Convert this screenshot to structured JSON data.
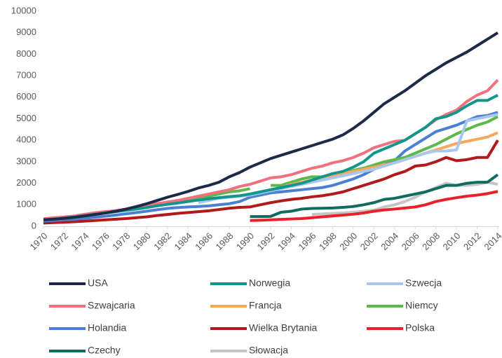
{
  "chart_data": {
    "type": "line",
    "x": [
      1970,
      1971,
      1972,
      1973,
      1974,
      1975,
      1976,
      1977,
      1978,
      1979,
      1980,
      1981,
      1982,
      1983,
      1984,
      1985,
      1986,
      1987,
      1988,
      1989,
      1990,
      1991,
      1992,
      1993,
      1994,
      1995,
      1996,
      1997,
      1998,
      1999,
      2000,
      2001,
      2002,
      2003,
      2004,
      2005,
      2006,
      2007,
      2008,
      2009,
      2010,
      2011,
      2012,
      2013,
      2014
    ],
    "xlim": [
      1970,
      2014
    ],
    "xticks": [
      1970,
      1972,
      1974,
      1976,
      1978,
      1980,
      1982,
      1984,
      1986,
      1988,
      1990,
      1992,
      1994,
      1996,
      1998,
      2000,
      2002,
      2004,
      2006,
      2008,
      2010,
      2012,
      2014
    ],
    "ylim": [
      0,
      10000
    ],
    "yticks": [
      0,
      1000,
      2000,
      3000,
      4000,
      5000,
      6000,
      7000,
      8000,
      9000,
      10000
    ],
    "series": [
      {
        "name": "USA",
        "color": "#1c2a48",
        "values": [
          300,
          330,
          370,
          420,
          480,
          550,
          620,
          700,
          800,
          920,
          1050,
          1200,
          1350,
          1480,
          1620,
          1780,
          1900,
          2050,
          2300,
          2500,
          2750,
          2950,
          3150,
          3300,
          3450,
          3600,
          3750,
          3900,
          4050,
          4250,
          4550,
          4900,
          5300,
          5700,
          6000,
          6300,
          6650,
          7000,
          7300,
          7600,
          7850,
          8100,
          8400,
          8700,
          9000
        ]
      },
      {
        "name": "Norwegia",
        "color": "#12968c",
        "values": [
          300,
          330,
          380,
          430,
          500,
          560,
          620,
          680,
          740,
          800,
          870,
          950,
          1020,
          1080,
          1150,
          1220,
          1280,
          1330,
          1380,
          1420,
          1500,
          1600,
          1700,
          1800,
          1900,
          2000,
          2150,
          2300,
          2450,
          2550,
          2750,
          3000,
          3400,
          3600,
          3800,
          4000,
          4300,
          4600,
          5000,
          5100,
          5300,
          5600,
          5850,
          5850,
          6100
        ]
      },
      {
        "name": "Szwecja",
        "color": "#a9c6ec",
        "values": [
          null,
          null,
          null,
          null,
          null,
          null,
          null,
          null,
          null,
          null,
          null,
          null,
          null,
          null,
          null,
          1100,
          1200,
          1300,
          1350,
          1400,
          1450,
          1550,
          1650,
          1750,
          1850,
          1950,
          2050,
          2150,
          2250,
          2350,
          2450,
          2550,
          2650,
          2800,
          2950,
          3100,
          3250,
          3400,
          3500,
          3500,
          3550,
          4900,
          5000,
          5100,
          5200
        ]
      },
      {
        "name": "Szwajcaria",
        "color": "#f0707e",
        "values": [
          350,
          400,
          430,
          480,
          560,
          630,
          680,
          730,
          800,
          870,
          950,
          1050,
          1130,
          1200,
          1300,
          1400,
          1500,
          1600,
          1700,
          1850,
          1950,
          2100,
          2250,
          2300,
          2400,
          2550,
          2700,
          2800,
          2950,
          3050,
          3200,
          3400,
          3650,
          3800,
          3950,
          4000,
          4300,
          4600,
          4950,
          5200,
          5400,
          5800,
          6100,
          6300,
          6800
        ]
      },
      {
        "name": "Francja",
        "color": "#f6a75c",
        "values": [
          null,
          null,
          null,
          null,
          null,
          null,
          null,
          null,
          null,
          null,
          null,
          null,
          null,
          null,
          null,
          null,
          null,
          null,
          null,
          null,
          1500,
          1600,
          1700,
          1800,
          1950,
          2050,
          2150,
          2250,
          2350,
          2450,
          2550,
          2650,
          2750,
          2850,
          2950,
          3100,
          3250,
          3400,
          3550,
          3700,
          3850,
          3950,
          4050,
          4150,
          4350
        ]
      },
      {
        "name": "Niemcy",
        "color": "#5cb84a",
        "values": [
          300,
          330,
          380,
          440,
          520,
          600,
          650,
          700,
          780,
          850,
          930,
          1000,
          1080,
          1150,
          1250,
          1350,
          1400,
          1500,
          1600,
          1650,
          1750,
          null,
          1900,
          1900,
          2050,
          2200,
          2300,
          2300,
          2400,
          2500,
          2600,
          2700,
          2850,
          3000,
          3100,
          3200,
          3400,
          3600,
          3800,
          4050,
          4300,
          4500,
          4700,
          4850,
          5100
        ]
      },
      {
        "name": "Holandia",
        "color": "#4a7fd4",
        "values": [
          250,
          270,
          300,
          330,
          370,
          420,
          470,
          520,
          580,
          640,
          700,
          770,
          830,
          870,
          900,
          920,
          950,
          1000,
          1050,
          1150,
          1350,
          1450,
          1550,
          1600,
          1650,
          1700,
          1750,
          1800,
          1900,
          2050,
          2200,
          2400,
          2650,
          2850,
          3050,
          3500,
          3800,
          4100,
          4400,
          4550,
          4700,
          4900,
          5100,
          5150,
          5300
        ]
      },
      {
        "name": "Wielka Brytania",
        "color": "#b01a1a",
        "values": [
          150,
          170,
          190,
          210,
          240,
          270,
          300,
          330,
          360,
          400,
          440,
          500,
          550,
          600,
          640,
          680,
          720,
          780,
          840,
          880,
          900,
          1000,
          1100,
          1180,
          1250,
          1300,
          1370,
          1420,
          1500,
          1600,
          1750,
          1900,
          2050,
          2200,
          2400,
          2550,
          2800,
          2850,
          3000,
          3200,
          3050,
          3100,
          3200,
          3200,
          4000
        ]
      },
      {
        "name": "Polska",
        "color": "#e8202a",
        "values": [
          null,
          null,
          null,
          null,
          null,
          null,
          null,
          null,
          null,
          null,
          null,
          null,
          null,
          null,
          null,
          null,
          null,
          null,
          null,
          null,
          270,
          280,
          300,
          320,
          340,
          360,
          400,
          440,
          480,
          520,
          560,
          620,
          700,
          760,
          800,
          850,
          900,
          1000,
          1150,
          1250,
          1330,
          1400,
          1450,
          1520,
          1620
        ]
      },
      {
        "name": "Czechy",
        "color": "#116b5f",
        "values": [
          null,
          null,
          null,
          null,
          null,
          null,
          null,
          null,
          null,
          null,
          null,
          null,
          null,
          null,
          null,
          null,
          null,
          null,
          null,
          null,
          450,
          450,
          460,
          650,
          700,
          800,
          830,
          840,
          850,
          880,
          920,
          1000,
          1100,
          1250,
          1300,
          1400,
          1500,
          1600,
          1750,
          1900,
          1900,
          2000,
          2050,
          2050,
          2400
        ]
      },
      {
        "name": "Słowacja",
        "color": "#c5c5c5",
        "values": [
          null,
          null,
          null,
          null,
          null,
          null,
          null,
          null,
          null,
          null,
          null,
          null,
          null,
          null,
          null,
          null,
          null,
          null,
          null,
          null,
          null,
          null,
          null,
          null,
          null,
          null,
          550,
          580,
          600,
          620,
          650,
          700,
          750,
          900,
          1000,
          1150,
          1350,
          1600,
          1800,
          2000,
          1900,
          1900,
          1950,
          2050,
          1950
        ]
      }
    ]
  }
}
